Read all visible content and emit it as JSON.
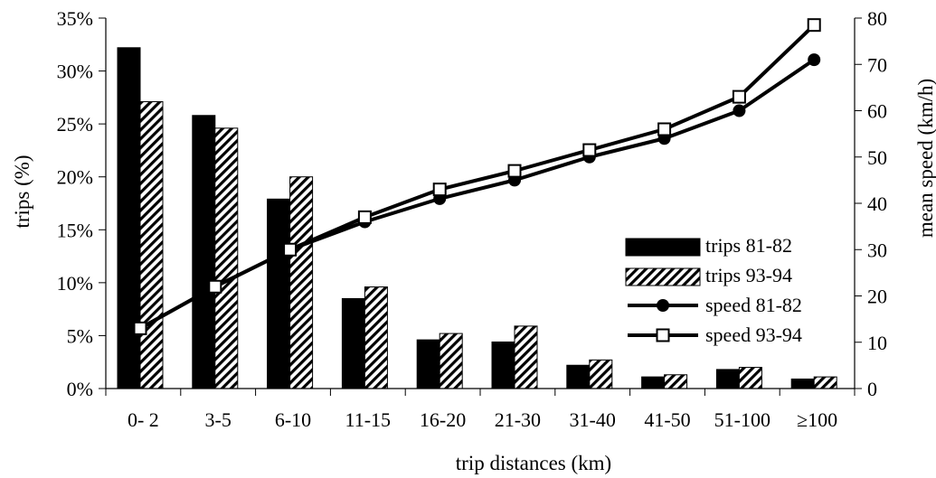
{
  "chart_data": {
    "type": "bar",
    "title": "",
    "xlabel": "trip distances (km)",
    "ylabel": "trips (%)",
    "y2label": "mean speed (km/h)",
    "categories": [
      "0- 2",
      "3-5",
      "6-10",
      "11-15",
      "16-20",
      "21-30",
      "31-40",
      "41-50",
      "51-100",
      "≥100"
    ],
    "ylim": [
      0,
      35
    ],
    "y2lim": [
      0,
      80
    ],
    "yticks": [
      0,
      5,
      10,
      15,
      20,
      25,
      30,
      35
    ],
    "ytick_labels": [
      "0%",
      "5%",
      "10%",
      "15%",
      "20%",
      "25%",
      "30%",
      "35%"
    ],
    "y2ticks": [
      0,
      10,
      20,
      30,
      40,
      50,
      60,
      70,
      80
    ],
    "y2tick_labels": [
      "0",
      "10",
      "20",
      "30",
      "40",
      "50",
      "60",
      "70",
      "80"
    ],
    "grid": false,
    "legend_position": "right",
    "series": [
      {
        "name": "trips 81-82",
        "kind": "bar",
        "axis": "left",
        "style": "solid",
        "values": [
          32.2,
          25.8,
          17.9,
          8.5,
          4.6,
          4.4,
          2.2,
          1.1,
          1.8,
          0.9
        ]
      },
      {
        "name": "trips 93-94",
        "kind": "bar",
        "axis": "left",
        "style": "hatched",
        "values": [
          27.1,
          24.6,
          20.0,
          9.6,
          5.2,
          5.9,
          2.7,
          1.3,
          2.0,
          1.1
        ]
      },
      {
        "name": "speed 81-82",
        "kind": "line",
        "axis": "right",
        "marker": "circle",
        "values": [
          13,
          22,
          30,
          36,
          41,
          45,
          50,
          54,
          60,
          71
        ]
      },
      {
        "name": "speed 93-94",
        "kind": "line",
        "axis": "right",
        "marker": "square",
        "values": [
          13,
          22,
          30,
          37,
          43,
          47,
          51.5,
          56,
          63,
          78.5
        ]
      }
    ]
  }
}
